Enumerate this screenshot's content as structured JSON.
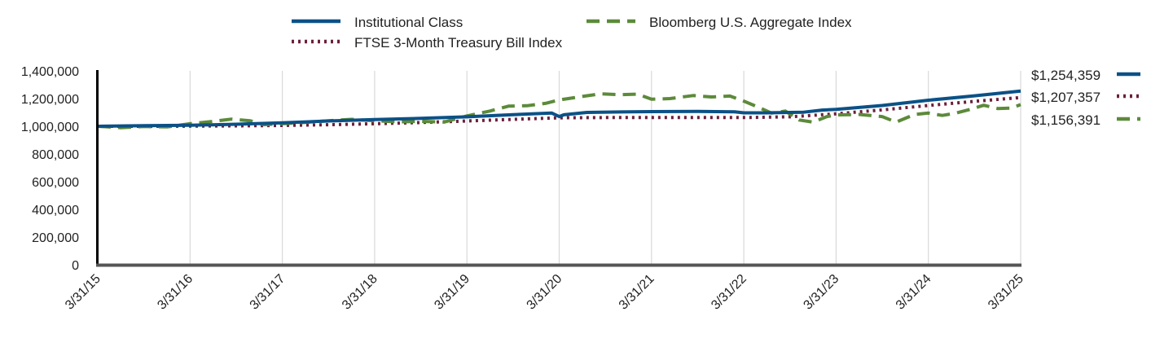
{
  "chart_data": {
    "type": "line",
    "title": "",
    "xlabel": "",
    "ylabel": "",
    "ylim": [
      0,
      1400000
    ],
    "yticks": [
      0,
      200000,
      400000,
      600000,
      800000,
      1000000,
      1200000,
      1400000
    ],
    "ytick_labels": [
      "0",
      "200,000",
      "400,000",
      "600,000",
      "800,000",
      "1,000,000",
      "1,200,000",
      "1,400,000"
    ],
    "xlim": [
      2015.0,
      2025.0
    ],
    "xticks": [
      2015,
      2016,
      2017,
      2018,
      2019,
      2020,
      2021,
      2022,
      2023,
      2024,
      2025
    ],
    "xtick_labels": [
      "3/31/15",
      "3/31/16",
      "3/31/17",
      "3/31/18",
      "3/31/19",
      "3/31/20",
      "3/31/21",
      "3/31/22",
      "3/31/23",
      "3/31/24",
      "3/31/25"
    ],
    "grid": "vertical",
    "legend_position": "top",
    "series": [
      {
        "name": "Institutional Class",
        "color": "#0b5186",
        "style": "solid",
        "end_label": "$1,254,359",
        "points": [
          [
            2015.0,
            1000000
          ],
          [
            2015.5,
            1004000
          ],
          [
            2016.0,
            1007000
          ],
          [
            2016.5,
            1015000
          ],
          [
            2017.0,
            1025000
          ],
          [
            2017.5,
            1038000
          ],
          [
            2018.0,
            1048000
          ],
          [
            2018.5,
            1057000
          ],
          [
            2019.0,
            1068000
          ],
          [
            2019.5,
            1084000
          ],
          [
            2019.92,
            1095000
          ],
          [
            2020.0,
            1070000
          ],
          [
            2020.05,
            1083000
          ],
          [
            2020.3,
            1100000
          ],
          [
            2020.6,
            1103000
          ],
          [
            2021.0,
            1106000
          ],
          [
            2021.5,
            1107000
          ],
          [
            2021.9,
            1104000
          ],
          [
            2022.0,
            1097000
          ],
          [
            2022.25,
            1097000
          ],
          [
            2022.5,
            1100000
          ],
          [
            2022.65,
            1102000
          ],
          [
            2022.85,
            1117000
          ],
          [
            2023.0,
            1122000
          ],
          [
            2023.5,
            1150000
          ],
          [
            2024.0,
            1188000
          ],
          [
            2024.5,
            1220000
          ],
          [
            2025.0,
            1254359
          ]
        ]
      },
      {
        "name": "Bloomberg U.S. Aggregate Index",
        "color": "#5c8a3a",
        "style": "dashed",
        "end_label": "$1,156,391",
        "points": [
          [
            2015.0,
            1000000
          ],
          [
            2015.25,
            990000
          ],
          [
            2015.5,
            998000
          ],
          [
            2015.75,
            995000
          ],
          [
            2016.0,
            1018000
          ],
          [
            2016.25,
            1035000
          ],
          [
            2016.45,
            1052000
          ],
          [
            2016.65,
            1040000
          ],
          [
            2016.8,
            1012000
          ],
          [
            2017.0,
            1018000
          ],
          [
            2017.25,
            1028000
          ],
          [
            2017.5,
            1040000
          ],
          [
            2017.75,
            1050000
          ],
          [
            2018.0,
            1040000
          ],
          [
            2018.25,
            1032000
          ],
          [
            2018.5,
            1036000
          ],
          [
            2018.75,
            1030000
          ],
          [
            2019.0,
            1075000
          ],
          [
            2019.25,
            1110000
          ],
          [
            2019.45,
            1145000
          ],
          [
            2019.65,
            1148000
          ],
          [
            2019.85,
            1165000
          ],
          [
            2020.0,
            1190000
          ],
          [
            2020.25,
            1215000
          ],
          [
            2020.45,
            1235000
          ],
          [
            2020.65,
            1228000
          ],
          [
            2020.85,
            1232000
          ],
          [
            2021.0,
            1195000
          ],
          [
            2021.2,
            1200000
          ],
          [
            2021.45,
            1222000
          ],
          [
            2021.65,
            1212000
          ],
          [
            2021.85,
            1218000
          ],
          [
            2022.0,
            1182000
          ],
          [
            2022.15,
            1140000
          ],
          [
            2022.3,
            1095000
          ],
          [
            2022.45,
            1110000
          ],
          [
            2022.6,
            1045000
          ],
          [
            2022.75,
            1030000
          ],
          [
            2022.9,
            1070000
          ],
          [
            2023.0,
            1082000
          ],
          [
            2023.25,
            1085000
          ],
          [
            2023.5,
            1070000
          ],
          [
            2023.65,
            1030000
          ],
          [
            2023.85,
            1085000
          ],
          [
            2024.0,
            1095000
          ],
          [
            2024.15,
            1078000
          ],
          [
            2024.3,
            1095000
          ],
          [
            2024.45,
            1122000
          ],
          [
            2024.6,
            1152000
          ],
          [
            2024.75,
            1128000
          ],
          [
            2024.9,
            1132000
          ],
          [
            2025.0,
            1156391
          ]
        ]
      },
      {
        "name": "FTSE 3-Month Treasury Bill Index",
        "color": "#6b1f3c",
        "style": "dotted",
        "end_label": "$1,207,357",
        "points": [
          [
            2015.0,
            1000000
          ],
          [
            2015.5,
            1000000
          ],
          [
            2016.0,
            1001000
          ],
          [
            2016.5,
            1003000
          ],
          [
            2017.0,
            1006000
          ],
          [
            2017.5,
            1011000
          ],
          [
            2018.0,
            1018000
          ],
          [
            2018.5,
            1027000
          ],
          [
            2019.0,
            1038000
          ],
          [
            2019.5,
            1050000
          ],
          [
            2020.0,
            1061000
          ],
          [
            2020.5,
            1063000
          ],
          [
            2021.0,
            1063000
          ],
          [
            2021.5,
            1063000
          ],
          [
            2022.0,
            1063000
          ],
          [
            2022.5,
            1068000
          ],
          [
            2023.0,
            1090000
          ],
          [
            2023.5,
            1118000
          ],
          [
            2024.0,
            1150000
          ],
          [
            2024.5,
            1180000
          ],
          [
            2025.0,
            1207357
          ]
        ]
      }
    ]
  }
}
